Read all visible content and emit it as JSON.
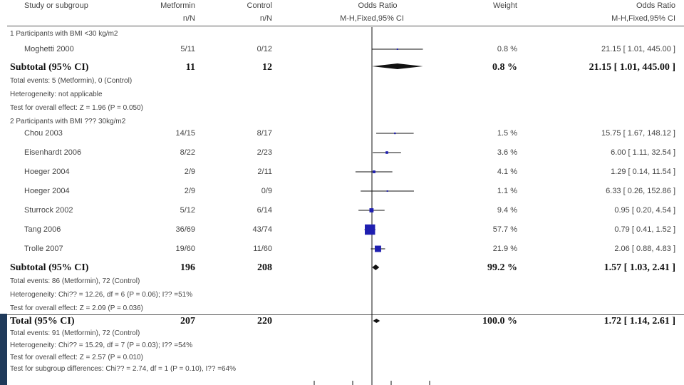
{
  "header": {
    "col_study": "Study or subgroup",
    "col_metformin": "Metformin",
    "col_control": "Control",
    "col_or_plot": "Odds Ratio",
    "col_weight": "Weight",
    "col_or_text": "Odds Ratio",
    "sub_metformin": "n/N",
    "sub_control": "n/N",
    "sub_or_plot": "M-H,Fixed,95% CI",
    "sub_or_text": "M-H,Fixed,95% CI"
  },
  "groups": [
    {
      "title": "1 Participants with BMI <30 kg/m2",
      "studies": [
        {
          "name": "Moghetti 2000",
          "metformin": "5/11",
          "control": "0/12",
          "weight": "0.8 %",
          "ci_text": "21.15 [ 1.01, 445.00 ]"
        }
      ],
      "subtotal": {
        "label": "Subtotal (95% CI)",
        "metformin": "11",
        "control": "12",
        "weight": "0.8 %",
        "ci_text": "21.15 [ 1.01, 445.00 ]"
      },
      "notes": [
        "Total events: 5 (Metformin), 0 (Control)",
        "Heterogeneity: not applicable",
        "Test for overall effect: Z = 1.96 (P = 0.050)"
      ]
    },
    {
      "title": "2 Participants with BMI ??? 30kg/m2",
      "studies": [
        {
          "name": "Chou 2003",
          "metformin": "14/15",
          "control": "8/17",
          "weight": "1.5 %",
          "ci_text": "15.75 [ 1.67, 148.12 ]"
        },
        {
          "name": "Eisenhardt 2006",
          "metformin": "8/22",
          "control": "2/23",
          "weight": "3.6 %",
          "ci_text": "6.00 [ 1.11, 32.54 ]"
        },
        {
          "name": "Hoeger 2004",
          "metformin": "2/9",
          "control": "2/11",
          "weight": "4.1 %",
          "ci_text": "1.29 [ 0.14, 11.54 ]"
        },
        {
          "name": "Hoeger 2004",
          "metformin": "2/9",
          "control": "0/9",
          "weight": "1.1 %",
          "ci_text": "6.33 [ 0.26, 152.86 ]"
        },
        {
          "name": "Sturrock 2002",
          "metformin": "5/12",
          "control": "6/14",
          "weight": "9.4 %",
          "ci_text": "0.95 [ 0.20, 4.54 ]"
        },
        {
          "name": "Tang 2006",
          "metformin": "36/69",
          "control": "43/74",
          "weight": "57.7 %",
          "ci_text": "0.79 [ 0.41, 1.52 ]"
        },
        {
          "name": "Trolle 2007",
          "metformin": "19/60",
          "control": "11/60",
          "weight": "21.9 %",
          "ci_text": "2.06 [ 0.88, 4.83 ]"
        }
      ],
      "subtotal": {
        "label": "Subtotal (95% CI)",
        "metformin": "196",
        "control": "208",
        "weight": "99.2 %",
        "ci_text": "1.57 [ 1.03, 2.41 ]"
      },
      "notes": [
        "Total events: 86 (Metformin), 72 (Control)",
        "Heterogeneity: Chi?? = 12.26, df = 6 (P = 0.06); I?? =51%",
        "Test for overall effect: Z = 2.09 (P = 0.036)"
      ]
    }
  ],
  "total": {
    "label": "Total (95% CI)",
    "metformin": "207",
    "control": "220",
    "weight": "100.0 %",
    "ci_text": "1.72 [ 1.14, 2.61 ]"
  },
  "total_notes": [
    "Total events: 91 (Metformin), 72 (Control)",
    "Heterogeneity: Chi?? = 15.29, df = 7 (P = 0.03); I?? =54%",
    "Test for overall effect: Z = 2.57 (P = 0.010)",
    "Test for subgroup differences: Chi?? = 2.74, df = 1 (P = 0.10), I?? =64%"
  ],
  "colors": {
    "marker": "#1f1fb0",
    "line": "#111111",
    "left_band": "#1f3a5a"
  },
  "chart_data": {
    "type": "forest",
    "effect_measure": "Odds Ratio (M-H, Fixed, 95% CI)",
    "x_scale": "log",
    "xlim": [
      0.002,
      500
    ],
    "null_value": 1,
    "studies": [
      {
        "group": 1,
        "name": "Moghetti 2000",
        "or": 21.15,
        "lo": 1.01,
        "hi": 445.0,
        "weight": 0.8
      },
      {
        "group": 2,
        "name": "Chou 2003",
        "or": 15.75,
        "lo": 1.67,
        "hi": 148.12,
        "weight": 1.5
      },
      {
        "group": 2,
        "name": "Eisenhardt 2006",
        "or": 6.0,
        "lo": 1.11,
        "hi": 32.54,
        "weight": 3.6
      },
      {
        "group": 2,
        "name": "Hoeger 2004",
        "or": 1.29,
        "lo": 0.14,
        "hi": 11.54,
        "weight": 4.1
      },
      {
        "group": 2,
        "name": "Hoeger 2004",
        "or": 6.33,
        "lo": 0.26,
        "hi": 152.86,
        "weight": 1.1
      },
      {
        "group": 2,
        "name": "Sturrock 2002",
        "or": 0.95,
        "lo": 0.2,
        "hi": 4.54,
        "weight": 9.4
      },
      {
        "group": 2,
        "name": "Tang 2006",
        "or": 0.79,
        "lo": 0.41,
        "hi": 1.52,
        "weight": 57.7
      },
      {
        "group": 2,
        "name": "Trolle 2007",
        "or": 2.06,
        "lo": 0.88,
        "hi": 4.83,
        "weight": 21.9
      }
    ],
    "summaries": [
      {
        "name": "Subtotal 1",
        "or": 21.15,
        "lo": 1.01,
        "hi": 445.0,
        "weight": 0.8
      },
      {
        "name": "Subtotal 2",
        "or": 1.57,
        "lo": 1.03,
        "hi": 2.41,
        "weight": 99.2
      },
      {
        "name": "Total",
        "or": 1.72,
        "lo": 1.14,
        "hi": 2.61,
        "weight": 100.0
      }
    ]
  }
}
